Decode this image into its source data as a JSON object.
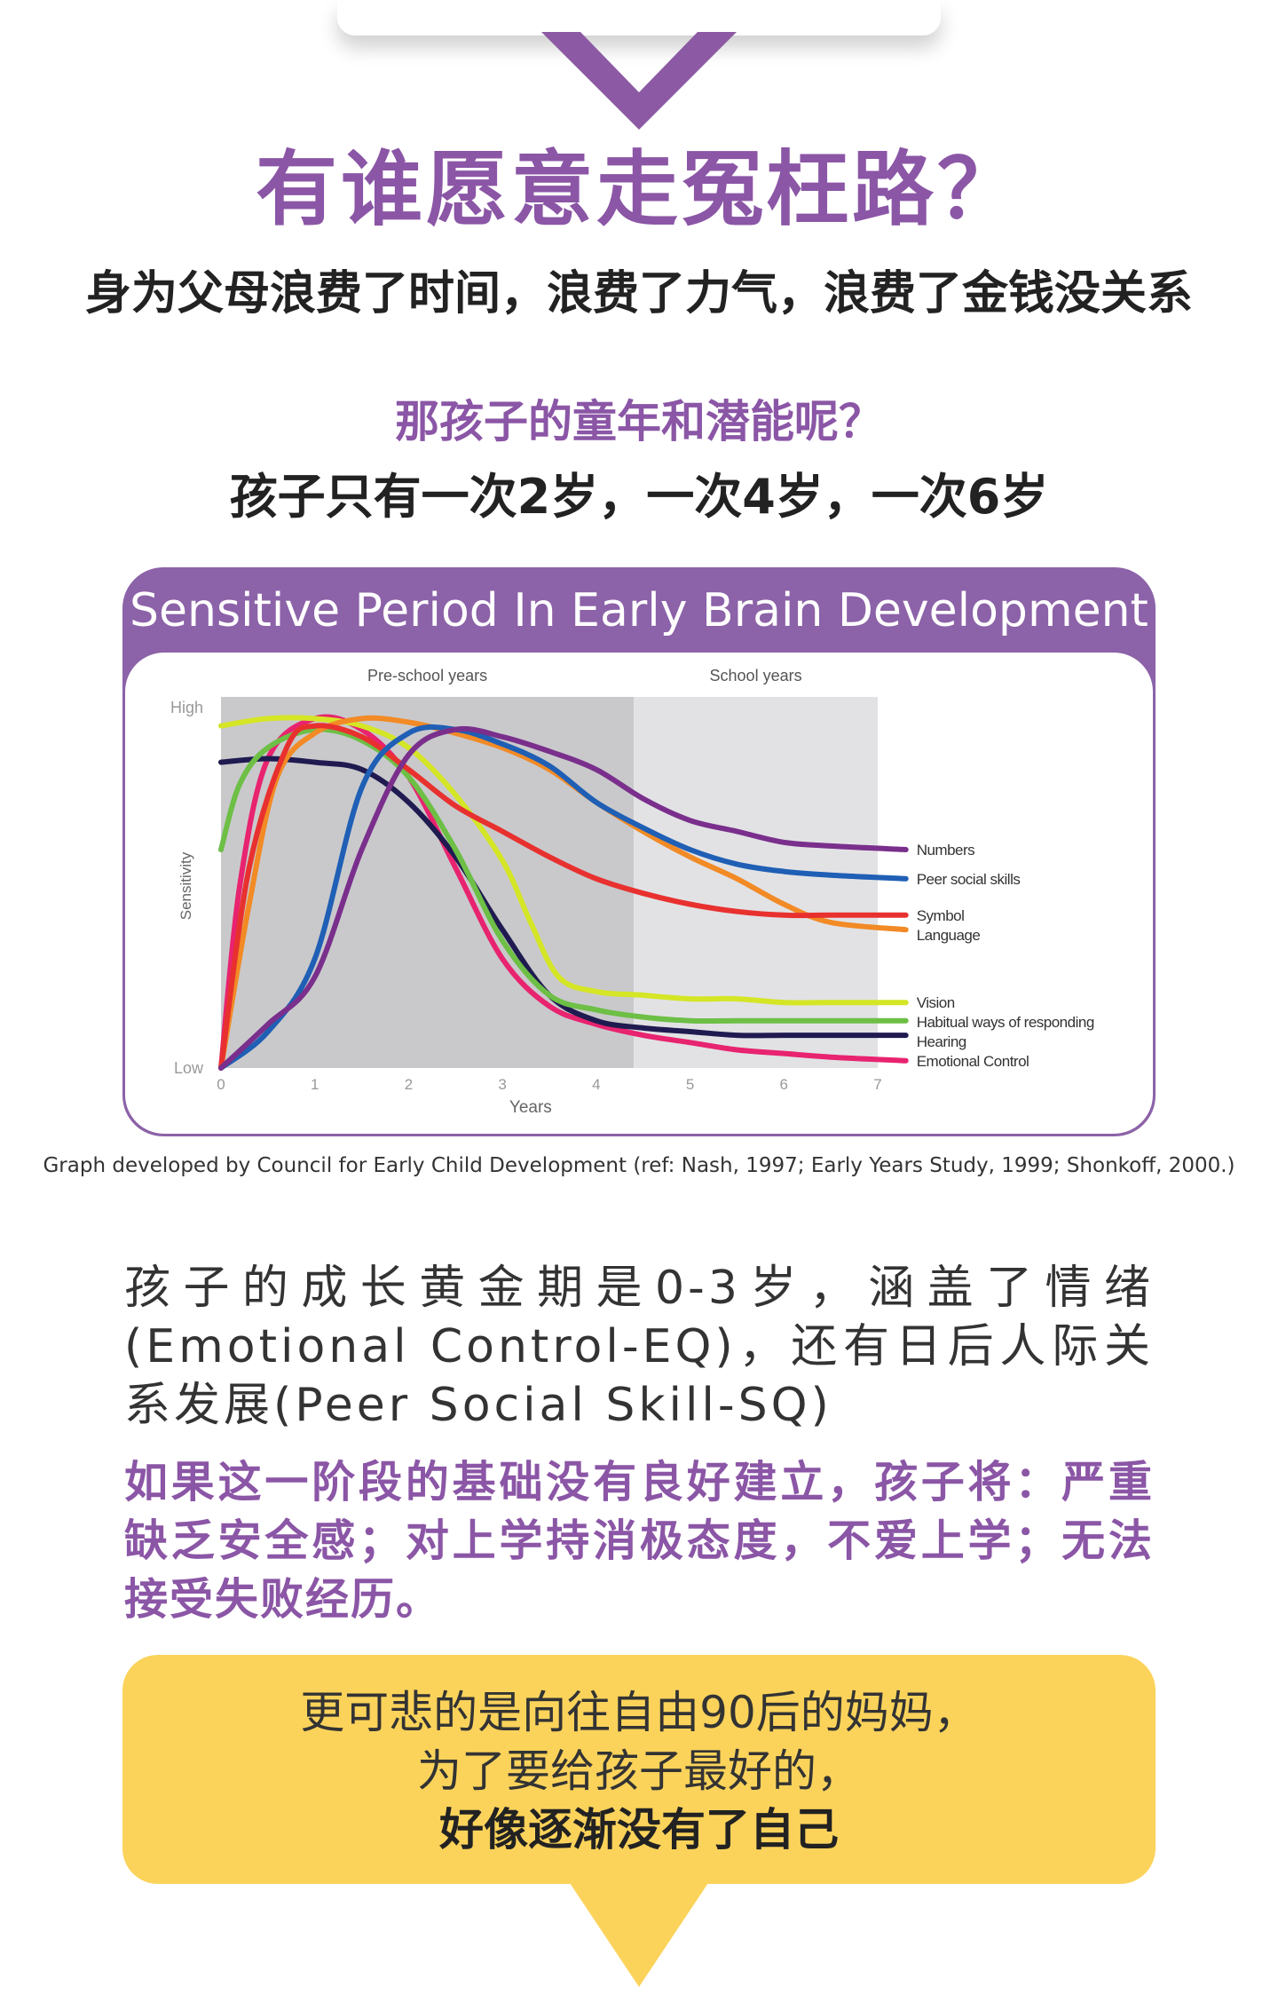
{
  "header": {
    "headline": "有谁愿意走冤枉路？",
    "subheadline": "身为父母浪费了时间，浪费了力气，浪费了金钱没关系",
    "question": "那孩子的童年和潜能呢？",
    "subquestion": "孩子只有一次2岁，一次4岁，一次6岁"
  },
  "chart_card": {
    "title": "Sensitive Period In Early Brain Development",
    "credit": "Graph developed by Council for Early Child Development (ref: Nash, 1997; Early Years Study, 1999; Shonkoff, 2000.)"
  },
  "chart_data": {
    "type": "line",
    "title": "Sensitive Period In Early Brain Development",
    "xlabel": "Years",
    "ylabel": "Sensitivity",
    "y_tick_labels": [
      "Low",
      "High"
    ],
    "xlim": [
      0,
      7
    ],
    "ylim": [
      0,
      100
    ],
    "x_ticks": [
      0,
      1,
      2,
      3,
      4,
      5,
      6,
      7
    ],
    "regions": [
      {
        "label": "Pre-school years",
        "from": 0,
        "to": 4.4,
        "color": "#c9c9cc"
      },
      {
        "label": "School years",
        "from": 4.4,
        "to": 7,
        "color": "#e2e2e5"
      }
    ],
    "grid": false,
    "legend_position": "right (inline labels at line ends)",
    "series": [
      {
        "name": "Numbers",
        "color": "#7a2f8c",
        "x": [
          0,
          0.5,
          1,
          1.5,
          2,
          2.5,
          3,
          3.5,
          4,
          4.5,
          5,
          5.5,
          6,
          6.5,
          7.3
        ],
        "values": [
          0,
          12,
          25,
          60,
          86,
          93,
          91,
          87,
          82,
          74,
          68,
          65,
          62,
          61,
          60
        ]
      },
      {
        "name": "Peer social skills",
        "color": "#1f5fb5",
        "x": [
          0,
          0.5,
          1,
          1.5,
          2,
          2.5,
          3,
          3.5,
          4,
          4.5,
          5,
          5.5,
          6,
          6.5,
          7.3
        ],
        "values": [
          0,
          10,
          30,
          77,
          92,
          93,
          89,
          83,
          73,
          66,
          60,
          56,
          54,
          53,
          52
        ]
      },
      {
        "name": "Symbol",
        "color": "#e8312f",
        "x": [
          0,
          0.3,
          0.7,
          1,
          1.5,
          2,
          2.5,
          3,
          3.5,
          4,
          4.5,
          5,
          5.5,
          6,
          6.5,
          7.3
        ],
        "values": [
          0,
          55,
          88,
          94,
          91,
          82,
          72,
          65,
          58,
          52,
          48,
          45,
          43,
          42,
          42,
          42
        ]
      },
      {
        "name": "Language",
        "color": "#f28a25",
        "x": [
          0,
          0.3,
          0.6,
          1,
          1.5,
          2,
          2.5,
          3,
          3.5,
          4,
          4.5,
          5,
          5.5,
          6,
          6.5,
          7.3
        ],
        "values": [
          0,
          45,
          80,
          92,
          96,
          95,
          92,
          88,
          82,
          73,
          65,
          58,
          52,
          45,
          40,
          38
        ]
      },
      {
        "name": "Vision",
        "color": "#d4e625",
        "x": [
          0,
          0.5,
          1,
          1.5,
          2,
          2.5,
          3,
          3.3,
          3.6,
          4,
          4.5,
          5,
          5.5,
          6,
          6.5,
          7.3
        ],
        "values": [
          94,
          96,
          96,
          94,
          88,
          75,
          57,
          40,
          25,
          21,
          20,
          19,
          19,
          18,
          18,
          18
        ]
      },
      {
        "name": "Habitual ways of responding",
        "color": "#6dbf45",
        "x": [
          0,
          0.2,
          0.5,
          1,
          1.5,
          2,
          2.5,
          3,
          3.5,
          4,
          4.5,
          5,
          5.5,
          6,
          6.5,
          7.3
        ],
        "values": [
          60,
          78,
          88,
          93,
          90,
          80,
          60,
          35,
          20,
          16,
          14,
          13,
          13,
          13,
          13,
          13
        ]
      },
      {
        "name": "Hearing",
        "color": "#1f1b50",
        "x": [
          0,
          0.5,
          1,
          1.5,
          2,
          2.5,
          3,
          3.5,
          4,
          4.5,
          5,
          5.5,
          6,
          6.5,
          7.3
        ],
        "values": [
          84,
          85,
          84,
          82,
          73,
          58,
          38,
          20,
          13,
          11,
          10,
          9,
          9,
          9,
          9
        ]
      },
      {
        "name": "Emotional Control",
        "color": "#e8236f",
        "x": [
          0,
          0.2,
          0.5,
          1,
          1.5,
          2,
          2.5,
          3,
          3.5,
          4,
          4.5,
          5,
          5.5,
          6,
          6.5,
          7.3
        ],
        "values": [
          0,
          50,
          85,
          96,
          93,
          80,
          55,
          30,
          17,
          12,
          9,
          7,
          5,
          4,
          3,
          2
        ]
      }
    ]
  },
  "paragraphs": {
    "p1": "孩子的成长黄金期是0-3岁，涵盖了情绪(Emotional Control-EQ)，还有日后人际关系发展(Peer Social Skill-SQ)",
    "p2": "如果这一阶段的基础没有良好建立，孩子将：严重缺乏安全感；对上学持消极态度，不爱上学；无法接受失败经历。"
  },
  "note": {
    "line1": "更可悲的是向往自由90后的妈妈，",
    "line2": "为了要给孩子最好的，",
    "line3": "好像逐渐没有了自己"
  },
  "colors": {
    "purple": "#8b56a6",
    "card_purple": "#8c62a8",
    "yellow": "#fbd35b"
  }
}
